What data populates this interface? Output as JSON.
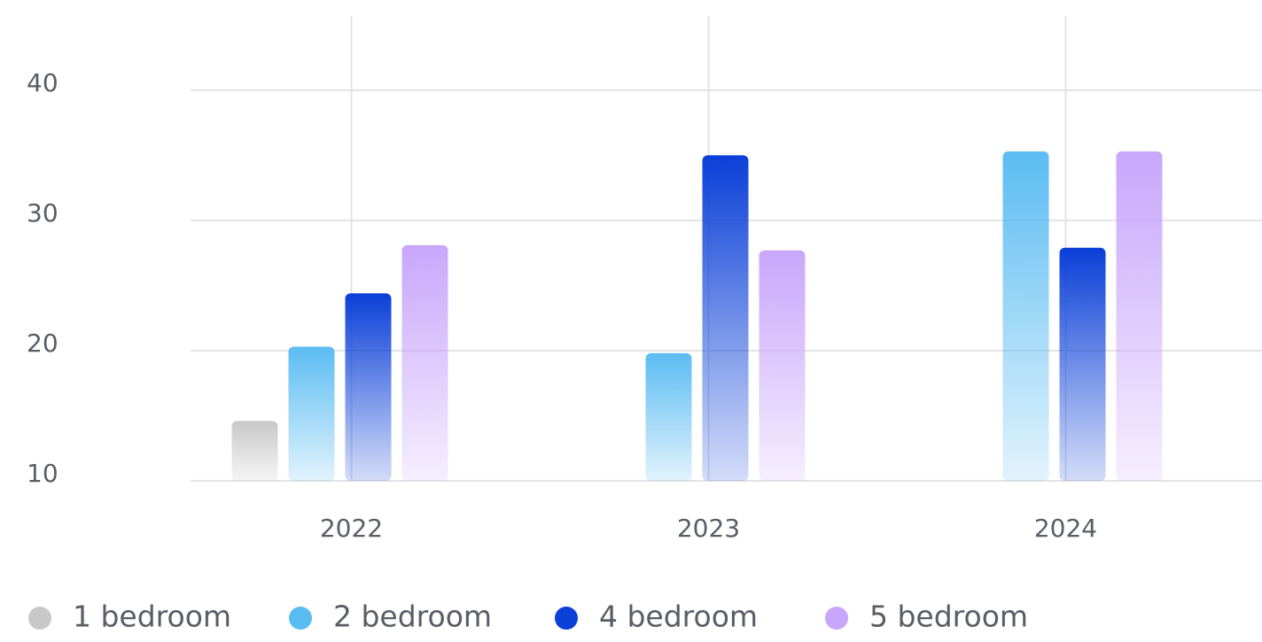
{
  "chart_data": {
    "type": "bar",
    "categories": [
      "2022",
      "2023",
      "2024"
    ],
    "series": [
      {
        "name": "1 bedroom",
        "color": "#c8c8c8",
        "values": [
          14.6,
          null,
          null
        ]
      },
      {
        "name": "2 bedroom",
        "color": "#5bbcf2",
        "values": [
          20.3,
          19.8,
          35.3
        ]
      },
      {
        "name": "4 bedroom",
        "color": "#0a3fd8",
        "values": [
          24.4,
          35.0,
          27.9
        ]
      },
      {
        "name": "5 bedroom",
        "color": "#c8a6fb",
        "values": [
          28.1,
          27.7,
          35.3
        ]
      }
    ],
    "ylim": [
      10,
      45.7
    ],
    "yticks": [
      10,
      20,
      30,
      40
    ],
    "grid": true,
    "legend": "bottom"
  }
}
